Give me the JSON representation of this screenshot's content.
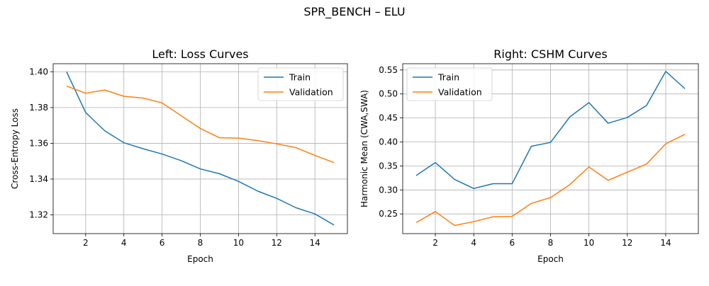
{
  "suptitle": "SPR_BENCH – ELU",
  "colors": {
    "train": "#1f77b4",
    "validation": "#ff7f0e",
    "grid": "#b0b0b0"
  },
  "chart_data": [
    {
      "type": "line",
      "title": "Left: Loss Curves",
      "xlabel": "Epoch",
      "ylabel": "Cross-Entropy Loss",
      "xlim": [
        0.3,
        15.7
      ],
      "ylim": [
        1.3095,
        1.4045
      ],
      "xticks": [
        2,
        4,
        6,
        8,
        10,
        12,
        14
      ],
      "yticks": [
        1.32,
        1.34,
        1.36,
        1.38,
        1.4
      ],
      "ytick_labels": [
        "1.32",
        "1.34",
        "1.36",
        "1.38",
        "1.40"
      ],
      "grid": true,
      "legend": "upper-right",
      "x": [
        1,
        2,
        3,
        4,
        5,
        6,
        7,
        8,
        9,
        10,
        11,
        12,
        13,
        14,
        15
      ],
      "series": [
        {
          "name": "Train",
          "color": "#1f77b4",
          "values": [
            1.4,
            1.3772,
            1.367,
            1.3603,
            1.357,
            1.354,
            1.3503,
            1.3457,
            1.343,
            1.3387,
            1.3333,
            1.3292,
            1.324,
            1.3205,
            1.3143
          ]
        },
        {
          "name": "Validation",
          "color": "#ff7f0e",
          "values": [
            1.392,
            1.388,
            1.3898,
            1.3863,
            1.3853,
            1.3826,
            1.3754,
            1.3683,
            1.3631,
            1.3629,
            1.3615,
            1.3597,
            1.3576,
            1.3532,
            1.3492
          ]
        }
      ]
    },
    {
      "type": "line",
      "title": "Right: CSHM Curves",
      "xlabel": "Epoch",
      "ylabel": "Harmonic Mean (CWA,SWA)",
      "xlim": [
        0.3,
        15.7
      ],
      "ylim": [
        0.209,
        0.563
      ],
      "xticks": [
        2,
        4,
        6,
        8,
        10,
        12,
        14
      ],
      "yticks": [
        0.25,
        0.3,
        0.35,
        0.4,
        0.45,
        0.5,
        0.55
      ],
      "ytick_labels": [
        "0.25",
        "0.30",
        "0.35",
        "0.40",
        "0.45",
        "0.50",
        "0.55"
      ],
      "grid": true,
      "legend": "upper-left",
      "x": [
        1,
        2,
        3,
        4,
        5,
        6,
        7,
        8,
        9,
        10,
        11,
        12,
        13,
        14,
        15
      ],
      "series": [
        {
          "name": "Train",
          "color": "#1f77b4",
          "values": [
            0.33,
            0.357,
            0.322,
            0.303,
            0.313,
            0.313,
            0.391,
            0.399,
            0.452,
            0.482,
            0.439,
            0.451,
            0.476,
            0.547,
            0.511
          ]
        },
        {
          "name": "Validation",
          "color": "#ff7f0e",
          "values": [
            0.232,
            0.255,
            0.226,
            0.234,
            0.244,
            0.245,
            0.272,
            0.284,
            0.311,
            0.348,
            0.32,
            0.337,
            0.354,
            0.396,
            0.416
          ]
        }
      ]
    }
  ]
}
